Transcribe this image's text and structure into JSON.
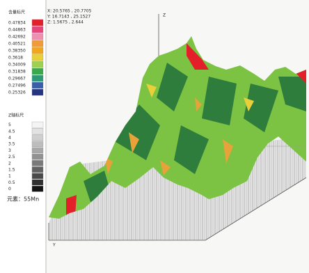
{
  "coordinates": {
    "x": "X: 20.5765 , 20.7705",
    "y": "Y: 16.7143 , 25.1527",
    "z": "Z: 1.5675 , 2.644"
  },
  "content_scale": {
    "title": "含量标尺",
    "items": [
      {
        "label": "0.47834",
        "color": "#e3202a"
      },
      {
        "label": "0.44863",
        "color": "#e8447c"
      },
      {
        "label": "0.42692",
        "color": "#ef8fb2"
      },
      {
        "label": "0.40521",
        "color": "#f29a3a"
      },
      {
        "label": "0.38350",
        "color": "#f2a61e"
      },
      {
        "label": "0.3618",
        "color": "#e9cf3a"
      },
      {
        "label": "0.34009",
        "color": "#9fd050"
      },
      {
        "label": "0.31838",
        "color": "#3aa84c"
      },
      {
        "label": "0.29667",
        "color": "#2d9a76"
      },
      {
        "label": "0.27496",
        "color": "#3a5ea8"
      },
      {
        "label": "0.25326",
        "color": "#24347f"
      }
    ]
  },
  "z_scale": {
    "title": "Z轴标尺",
    "items": [
      {
        "label": "5",
        "color": "#f4f4f4"
      },
      {
        "label": "4.5",
        "color": "#e2e2e2"
      },
      {
        "label": "4",
        "color": "#cfcfcf"
      },
      {
        "label": "3.5",
        "color": "#bdbdbd"
      },
      {
        "label": "3",
        "color": "#a8a8a8"
      },
      {
        "label": "2.5",
        "color": "#929292"
      },
      {
        "label": "2",
        "color": "#7a7a7a"
      },
      {
        "label": "1.5",
        "color": "#626262"
      },
      {
        "label": "1",
        "color": "#4a4a4a"
      },
      {
        "label": "0.5",
        "color": "#303030"
      },
      {
        "label": "0",
        "color": "#141414"
      }
    ]
  },
  "element": "元素：55Mn",
  "axes": {
    "z": "Z",
    "y": "Y"
  }
}
